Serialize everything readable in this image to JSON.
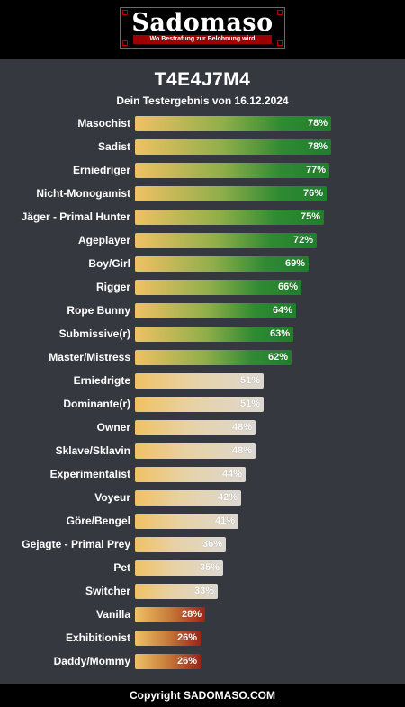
{
  "header": {
    "brand": "Sadomaso",
    "tagline": "Wo Bestrafung zur Belohnung wird"
  },
  "title": "T4E4J7M4",
  "subtitle": "Dein Testergebnis von 16.12.2024",
  "colors": {
    "high": "#2f8a32",
    "mid": "#dcd8d2",
    "low": "#9c2417",
    "start": "#f0c164"
  },
  "results": [
    {
      "label": "Masochist",
      "value": 78,
      "pct": "78%",
      "tier": "green"
    },
    {
      "label": "Sadist",
      "value": 78,
      "pct": "78%",
      "tier": "green"
    },
    {
      "label": "Erniedriger",
      "value": 77,
      "pct": "77%",
      "tier": "green"
    },
    {
      "label": "Nicht-Monogamist",
      "value": 76,
      "pct": "76%",
      "tier": "green"
    },
    {
      "label": "Jäger - Primal Hunter",
      "value": 75,
      "pct": "75%",
      "tier": "green"
    },
    {
      "label": "Ageplayer",
      "value": 72,
      "pct": "72%",
      "tier": "green"
    },
    {
      "label": "Boy/Girl",
      "value": 69,
      "pct": "69%",
      "tier": "green"
    },
    {
      "label": "Rigger",
      "value": 66,
      "pct": "66%",
      "tier": "green"
    },
    {
      "label": "Rope Bunny",
      "value": 64,
      "pct": "64%",
      "tier": "green"
    },
    {
      "label": "Submissive(r)",
      "value": 63,
      "pct": "63%",
      "tier": "green"
    },
    {
      "label": "Master/Mistress",
      "value": 62,
      "pct": "62%",
      "tier": "green"
    },
    {
      "label": "Erniedrigte",
      "value": 51,
      "pct": "51%",
      "tier": "light"
    },
    {
      "label": "Dominante(r)",
      "value": 51,
      "pct": "51%",
      "tier": "light"
    },
    {
      "label": "Owner",
      "value": 48,
      "pct": "48%",
      "tier": "light"
    },
    {
      "label": "Sklave/Sklavin",
      "value": 48,
      "pct": "48%",
      "tier": "light"
    },
    {
      "label": "Experimentalist",
      "value": 44,
      "pct": "44%",
      "tier": "light"
    },
    {
      "label": "Voyeur",
      "value": 42,
      "pct": "42%",
      "tier": "light"
    },
    {
      "label": "Göre/Bengel",
      "value": 41,
      "pct": "41%",
      "tier": "light"
    },
    {
      "label": "Gejagte - Primal Prey",
      "value": 36,
      "pct": "36%",
      "tier": "light"
    },
    {
      "label": "Pet",
      "value": 35,
      "pct": "35%",
      "tier": "light"
    },
    {
      "label": "Switcher",
      "value": 33,
      "pct": "33%",
      "tier": "light"
    },
    {
      "label": "Vanilla",
      "value": 28,
      "pct": "28%",
      "tier": "red"
    },
    {
      "label": "Exhibitionist",
      "value": 26,
      "pct": "26%",
      "tier": "red"
    },
    {
      "label": "Daddy/Mommy",
      "value": 26,
      "pct": "26%",
      "tier": "red"
    }
  ],
  "footer": {
    "copyright": "Copyright SADOMASO.COM"
  }
}
